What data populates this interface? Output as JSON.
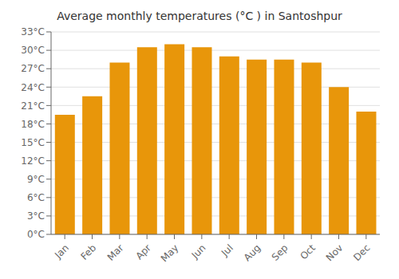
{
  "chart_data": {
    "type": "bar",
    "title": "Average monthly temperatures (°C ) in Santoshpur",
    "categories": [
      "Jan",
      "Feb",
      "Mar",
      "Apr",
      "May",
      "Jun",
      "Jul",
      "Aug",
      "Sep",
      "Oct",
      "Nov",
      "Dec"
    ],
    "values": [
      19.5,
      22.5,
      28.0,
      30.5,
      31.0,
      30.5,
      29.0,
      28.5,
      28.5,
      28.0,
      24.0,
      20.0
    ],
    "color": "#E8960A",
    "ylim": [
      0,
      33
    ],
    "yticks": [
      {
        "value": 0,
        "label": "0°C"
      },
      {
        "value": 3,
        "label": "3°C"
      },
      {
        "value": 6,
        "label": "6°C"
      },
      {
        "value": 9,
        "label": "9°C"
      },
      {
        "value": 12,
        "label": "12°C"
      },
      {
        "value": 15,
        "label": "15°C"
      },
      {
        "value": 18,
        "label": "18°C"
      },
      {
        "value": 21,
        "label": "21°C"
      },
      {
        "value": 24,
        "label": "24°C"
      },
      {
        "value": 27,
        "label": "27°C"
      },
      {
        "value": 30,
        "label": "30°C"
      },
      {
        "value": 33,
        "label": "33°C"
      }
    ],
    "grid": true
  }
}
